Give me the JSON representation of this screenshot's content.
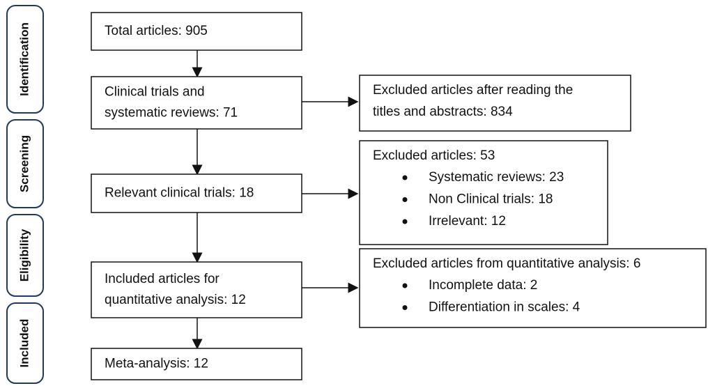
{
  "stages": [
    "Identification",
    "Screening",
    "Eligibility",
    "Included"
  ],
  "boxes": [
    {
      "lines": [
        "Total articles: 905"
      ]
    },
    {
      "lines": [
        "Clinical trials and",
        "systematic reviews: 71"
      ]
    },
    {
      "lines": [
        "Relevant clinical trials: 18"
      ]
    },
    {
      "lines": [
        "Included articles for",
        "quantitative analysis: 12"
      ]
    },
    {
      "lines": [
        "Meta-analysis: 12"
      ]
    }
  ],
  "exclusions": [
    {
      "lines": [
        "Excluded articles after reading the",
        "titles and abstracts: 834"
      ],
      "items": []
    },
    {
      "lines": [
        "Excluded articles: 53"
      ],
      "items": [
        "Systematic reviews: 23",
        "Non Clinical trials:  18",
        "Irrelevant: 12"
      ]
    },
    {
      "lines": [
        "Excluded articles from quantitative analysis: 6"
      ],
      "items": [
        "Incomplete data: 2",
        "Differentiation in scales: 4"
      ]
    }
  ]
}
